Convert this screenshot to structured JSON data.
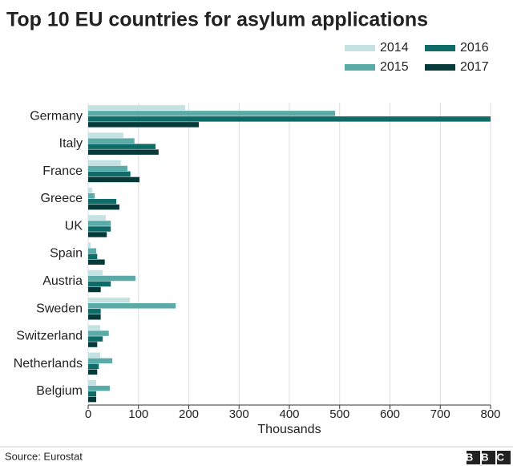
{
  "chart_data": {
    "type": "hbar",
    "title": "Top 10 EU countries for asylum applications",
    "categories": [
      "Germany",
      "Italy",
      "France",
      "Greece",
      "UK",
      "Spain",
      "Austria",
      "Sweden",
      "Switzerland",
      "Netherlands",
      "Belgium"
    ],
    "series": [
      {
        "name": "2014",
        "color": "#c5e2e2",
        "values": [
          193,
          70,
          65,
          8,
          35,
          5,
          29,
          83,
          24,
          24,
          16
        ]
      },
      {
        "name": "2015",
        "color": "#5aaba7",
        "values": [
          491,
          92,
          78,
          13,
          45,
          16,
          94,
          174,
          41,
          48,
          43
        ]
      },
      {
        "name": "2016",
        "color": "#0e6b68",
        "values": [
          800,
          134,
          84,
          56,
          45,
          18,
          45,
          25,
          29,
          21,
          16
        ]
      },
      {
        "name": "2017",
        "color": "#063a3a",
        "values": [
          220,
          140,
          102,
          62,
          37,
          33,
          25,
          25,
          18,
          18,
          16
        ]
      }
    ],
    "xlim": [
      0,
      800
    ],
    "xticks": [
      0,
      100,
      200,
      300,
      400,
      500,
      600,
      700,
      800
    ],
    "x_label": "Thousands",
    "grid": true,
    "source": "Source: Eurostat",
    "logo": "BBC"
  }
}
